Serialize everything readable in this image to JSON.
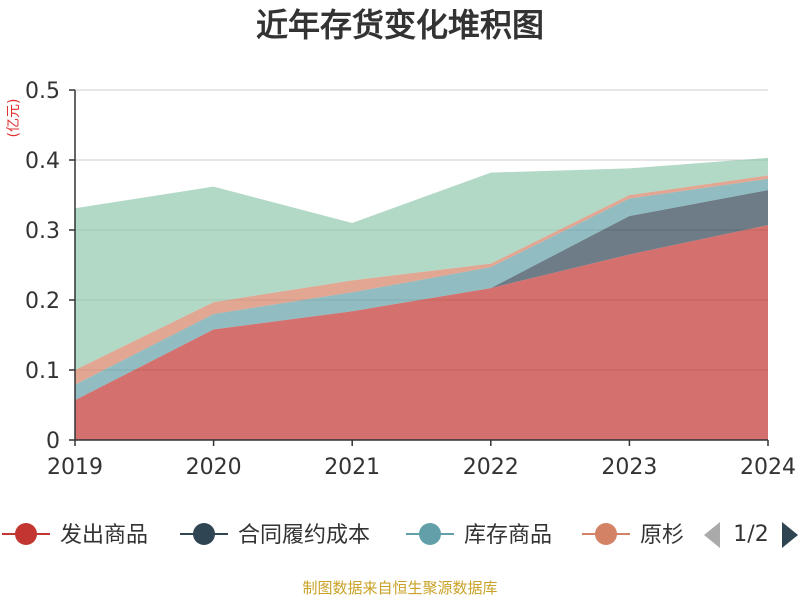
{
  "chart_data": {
    "type": "area",
    "stacked": true,
    "title": "近年存货变化堆积图",
    "ylabel": "(亿元)",
    "ylabel_color": "#e03030",
    "x": [
      "2019",
      "2020",
      "2021",
      "2022",
      "2023",
      "2024"
    ],
    "ylim": [
      0,
      0.5
    ],
    "yticks": [
      "0",
      "0.1",
      "0.2",
      "0.3",
      "0.4",
      "0.5"
    ],
    "grid": true,
    "series": [
      {
        "name": "发出商品",
        "color": "#c23531",
        "values": [
          0.057,
          0.158,
          0.184,
          0.217,
          0.265,
          0.307
        ]
      },
      {
        "name": "合同履约成本",
        "color": "#2f4554",
        "values": [
          0,
          0,
          0,
          0,
          0.055,
          0.05
        ]
      },
      {
        "name": "库存商品",
        "color": "#61a0a8",
        "values": [
          0.022,
          0.022,
          0.027,
          0.03,
          0.025,
          0.016
        ]
      },
      {
        "name": "原材料",
        "color": "#d48265",
        "values": [
          0.021,
          0.017,
          0.017,
          0.005,
          0.005,
          0.005
        ]
      },
      {
        "name": "",
        "color": "#91c7ae",
        "values": [
          0.231,
          0.165,
          0.082,
          0.13,
          0.038,
          0.025
        ]
      }
    ],
    "legend": {
      "position": "bottom",
      "items": [
        "发出商品",
        "合同履约成本",
        "库存商品",
        "原杉"
      ],
      "page": "1/2"
    }
  },
  "source_text": "制图数据来自恒生聚源数据库",
  "source_color": "#c9a227"
}
